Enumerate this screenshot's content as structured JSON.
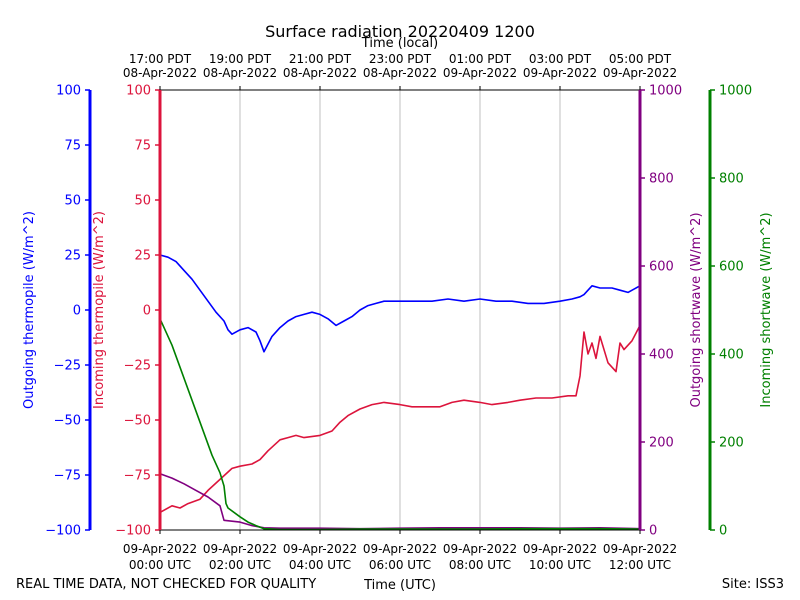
{
  "chart_data": {
    "type": "line",
    "title": "Surface radiation 20220409 1200",
    "top_xlabel": "Time (local)",
    "xlabel": "Time (UTC)",
    "footer_left": "REAL TIME DATA, NOT CHECKED FOR QUALITY",
    "footer_right": "Site: ISS3",
    "x_unit": "hours since 2022-04-09 00:00 UTC",
    "xlim": [
      0,
      12
    ],
    "x_ticks_utc": [
      {
        "x": 0,
        "line1": "09-Apr-2022",
        "line2": "00:00 UTC"
      },
      {
        "x": 2,
        "line1": "09-Apr-2022",
        "line2": "02:00 UTC"
      },
      {
        "x": 4,
        "line1": "09-Apr-2022",
        "line2": "04:00 UTC"
      },
      {
        "x": 6,
        "line1": "09-Apr-2022",
        "line2": "06:00 UTC"
      },
      {
        "x": 8,
        "line1": "09-Apr-2022",
        "line2": "08:00 UTC"
      },
      {
        "x": 10,
        "line1": "09-Apr-2022",
        "line2": "10:00 UTC"
      },
      {
        "x": 12,
        "line1": "09-Apr-2022",
        "line2": "12:00 UTC"
      }
    ],
    "x_ticks_local": [
      {
        "x": 0,
        "line1": "17:00 PDT",
        "line2": "08-Apr-2022"
      },
      {
        "x": 2,
        "line1": "19:00 PDT",
        "line2": "08-Apr-2022"
      },
      {
        "x": 4,
        "line1": "21:00 PDT",
        "line2": "08-Apr-2022"
      },
      {
        "x": 6,
        "line1": "23:00 PDT",
        "line2": "08-Apr-2022"
      },
      {
        "x": 8,
        "line1": "01:00 PDT",
        "line2": "09-Apr-2022"
      },
      {
        "x": 10,
        "line1": "03:00 PDT",
        "line2": "09-Apr-2022"
      },
      {
        "x": 12,
        "line1": "05:00 PDT",
        "line2": "09-Apr-2022"
      }
    ],
    "axes": [
      {
        "id": "outgoing_thermopile",
        "label": "Outgoing thermopile (W/m^2)",
        "color": "#0000ff",
        "ylim": [
          -100,
          100
        ],
        "ticks": [
          -100,
          -75,
          -50,
          -25,
          0,
          25,
          50,
          75,
          100
        ]
      },
      {
        "id": "incoming_thermopile",
        "label": "Incoming thermopile (W/m^2)",
        "color": "#dc143c",
        "ylim": [
          -100,
          100
        ],
        "ticks": [
          -100,
          -75,
          -50,
          -25,
          0,
          25,
          50,
          75,
          100
        ]
      },
      {
        "id": "outgoing_shortwave",
        "label": "Outgoing shortwave (W/m^2)",
        "color": "#800080",
        "ylim": [
          0,
          1000
        ],
        "ticks": [
          0,
          200,
          400,
          600,
          800,
          1000
        ]
      },
      {
        "id": "incoming_shortwave",
        "label": "Incoming shortwave (W/m^2)",
        "color": "#008000",
        "ylim": [
          0,
          1000
        ],
        "ticks": [
          0,
          200,
          400,
          600,
          800,
          1000
        ]
      }
    ],
    "series": [
      {
        "name": "Outgoing thermopile",
        "axis": "outgoing_thermopile",
        "color": "#0000ff",
        "x": [
          0,
          0.2,
          0.4,
          0.6,
          0.8,
          1.0,
          1.2,
          1.4,
          1.6,
          1.7,
          1.8,
          2.0,
          2.2,
          2.4,
          2.5,
          2.6,
          2.8,
          3.0,
          3.2,
          3.4,
          3.6,
          3.8,
          4.0,
          4.2,
          4.4,
          4.6,
          4.8,
          5.0,
          5.2,
          5.4,
          5.6,
          5.8,
          6.0,
          6.4,
          6.8,
          7.2,
          7.6,
          8.0,
          8.4,
          8.8,
          9.2,
          9.6,
          10.0,
          10.3,
          10.5,
          10.6,
          10.8,
          11.0,
          11.3,
          11.5,
          11.7,
          12.0
        ],
        "y": [
          25,
          24,
          22,
          18,
          14,
          9,
          4,
          -1,
          -5,
          -9,
          -11,
          -9,
          -8,
          -10,
          -14,
          -19,
          -12,
          -8,
          -5,
          -3,
          -2,
          -1,
          -2,
          -4,
          -7,
          -5,
          -3,
          0,
          2,
          3,
          4,
          4,
          4,
          4,
          4,
          5,
          4,
          5,
          4,
          4,
          3,
          3,
          4,
          5,
          6,
          7,
          11,
          10,
          10,
          9,
          8,
          11
        ]
      },
      {
        "name": "Incoming thermopile",
        "axis": "incoming_thermopile",
        "color": "#dc143c",
        "x": [
          0,
          0.3,
          0.5,
          0.7,
          1.0,
          1.2,
          1.5,
          1.8,
          2.0,
          2.3,
          2.5,
          2.7,
          3.0,
          3.2,
          3.4,
          3.6,
          4.0,
          4.3,
          4.5,
          4.7,
          5.0,
          5.3,
          5.6,
          6.0,
          6.3,
          6.6,
          7.0,
          7.3,
          7.6,
          8.0,
          8.3,
          8.7,
          9.0,
          9.4,
          9.8,
          10.2,
          10.4,
          10.5,
          10.6,
          10.7,
          10.8,
          10.9,
          11.0,
          11.2,
          11.4,
          11.5,
          11.6,
          11.8,
          12.0
        ],
        "y": [
          -92,
          -89,
          -90,
          -88,
          -86,
          -82,
          -77,
          -72,
          -71,
          -70,
          -68,
          -64,
          -59,
          -58,
          -57,
          -58,
          -57,
          -55,
          -51,
          -48,
          -45,
          -43,
          -42,
          -43,
          -44,
          -44,
          -44,
          -42,
          -41,
          -42,
          -43,
          -42,
          -41,
          -40,
          -40,
          -39,
          -39,
          -30,
          -10,
          -20,
          -15,
          -22,
          -12,
          -24,
          -28,
          -15,
          -18,
          -14,
          -7
        ]
      },
      {
        "name": "Outgoing shortwave",
        "axis": "outgoing_shortwave",
        "color": "#800080",
        "x": [
          0,
          0.3,
          0.6,
          0.9,
          1.2,
          1.5,
          1.6,
          1.8,
          2.0,
          2.3,
          2.6,
          3.0,
          4.0,
          5.0,
          6.0,
          7.0,
          8.0,
          9.0,
          10.0,
          11.0,
          12.0
        ],
        "y": [
          128,
          118,
          105,
          90,
          75,
          55,
          22,
          20,
          18,
          10,
          5,
          4,
          4,
          3,
          4,
          5,
          5,
          5,
          4,
          5,
          3
        ]
      },
      {
        "name": "Incoming shortwave",
        "axis": "incoming_shortwave",
        "color": "#008000",
        "x": [
          0,
          0.1,
          0.3,
          0.5,
          0.7,
          0.9,
          1.1,
          1.3,
          1.5,
          1.6,
          1.65,
          1.7,
          2.0,
          2.2,
          2.4,
          2.6,
          2.8,
          3.0,
          4.0,
          5.0,
          6.0,
          7.0,
          8.0,
          9.0,
          10.0,
          11.0,
          12.0
        ],
        "y": [
          480,
          460,
          420,
          370,
          320,
          270,
          220,
          170,
          130,
          100,
          60,
          50,
          30,
          18,
          10,
          3,
          2,
          1,
          1,
          2,
          2,
          2,
          2,
          3,
          3,
          3,
          2
        ]
      }
    ]
  }
}
